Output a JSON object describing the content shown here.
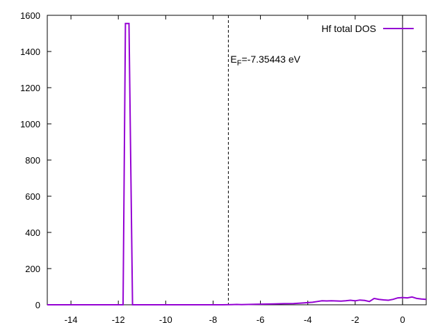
{
  "chart_data": {
    "type": "line",
    "title": "",
    "xlabel": "",
    "ylabel": "",
    "xlim": [
      -15,
      1
    ],
    "ylim": [
      0,
      1600
    ],
    "xticks": [
      -14,
      -12,
      -10,
      -8,
      -6,
      -4,
      -2,
      0
    ],
    "yticks": [
      0,
      200,
      400,
      600,
      800,
      1000,
      1200,
      1400,
      1600
    ],
    "grid": false,
    "legend_position": "top-right",
    "annotation": {
      "E_symbol": "E",
      "F_subscript": "F",
      "value_text": "=-7.35443 eV",
      "x": -7.35443
    },
    "zero_line_x": 0,
    "series": [
      {
        "name": "Hf total DOS",
        "color": "#9400d3",
        "x": [
          -15,
          -11.8,
          -11.7,
          -11.55,
          -11.4,
          -11.2,
          -9,
          -7.6,
          -7.2,
          -7.0,
          -6.8,
          -6.5,
          -6.2,
          -5.8,
          -5.4,
          -5.0,
          -4.6,
          -4.2,
          -3.8,
          -3.6,
          -3.4,
          -3.2,
          -3.0,
          -2.8,
          -2.6,
          -2.4,
          -2.2,
          -2.0,
          -1.8,
          -1.6,
          -1.4,
          -1.2,
          -1.0,
          -0.8,
          -0.6,
          -0.4,
          -0.2,
          0.0,
          0.2,
          0.4,
          0.6,
          0.8,
          1.0
        ],
        "y": [
          0,
          0,
          1555,
          1555,
          0,
          0,
          0,
          0,
          1,
          2,
          1,
          2,
          3,
          4,
          5,
          6,
          7,
          10,
          14,
          18,
          22,
          21,
          22,
          21,
          20,
          22,
          25,
          22,
          26,
          24,
          18,
          35,
          30,
          27,
          25,
          30,
          38,
          40,
          38,
          43,
          35,
          32,
          30
        ]
      }
    ]
  }
}
